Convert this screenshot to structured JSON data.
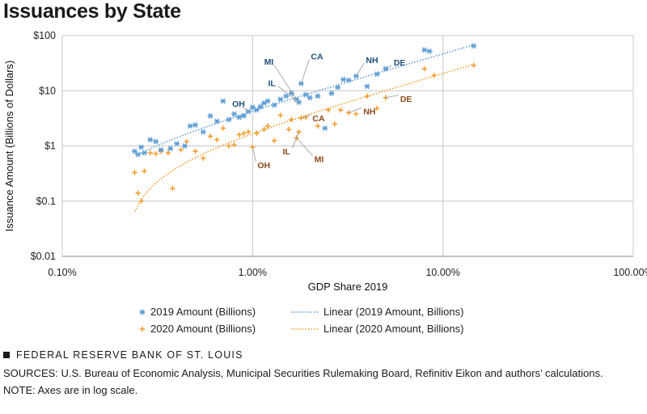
{
  "title": "Issuances by State",
  "chart_data": {
    "type": "scatter",
    "title": "Issuances by State",
    "xlabel": "GDP Share 2019",
    "ylabel": "Issuance Amount (Billions of Dollars)",
    "xscale": "log",
    "yscale": "log",
    "xlim": [
      0.1,
      100
    ],
    "ylim": [
      0.01,
      100
    ],
    "x_ticks": [
      0.1,
      1,
      10,
      100
    ],
    "x_tick_labels": [
      "0.10%",
      "1.00%",
      "10.00%",
      "100.00%"
    ],
    "y_ticks": [
      0.01,
      0.1,
      1,
      10,
      100
    ],
    "y_tick_labels": [
      "$0.01",
      "$0.1",
      "$1",
      "$10",
      "$100"
    ],
    "grid": true,
    "series": [
      {
        "name": "2019 Amount (Billions)",
        "color": "#5b9bd5",
        "marker": "asterisk",
        "points": [
          [
            0.24,
            0.8
          ],
          [
            0.25,
            0.7
          ],
          [
            0.26,
            0.95
          ],
          [
            0.27,
            0.75
          ],
          [
            0.29,
            1.3
          ],
          [
            0.31,
            1.2
          ],
          [
            0.33,
            0.85
          ],
          [
            0.37,
            0.9
          ],
          [
            0.4,
            1.1
          ],
          [
            0.44,
            1.0
          ],
          [
            0.47,
            2.3
          ],
          [
            0.5,
            2.4
          ],
          [
            0.55,
            1.8
          ],
          [
            0.6,
            3.5
          ],
          [
            0.65,
            2.8
          ],
          [
            0.7,
            6.5
          ],
          [
            0.75,
            3.0
          ],
          [
            0.8,
            3.8
          ],
          [
            0.85,
            3.3
          ],
          [
            0.9,
            3.5
          ],
          [
            0.95,
            4.2
          ],
          [
            1.0,
            5.0
          ],
          [
            1.05,
            4.5
          ],
          [
            1.1,
            5.2
          ],
          [
            1.15,
            6.0
          ],
          [
            1.2,
            6.5
          ],
          [
            1.3,
            5.5
          ],
          [
            1.4,
            7.0
          ],
          [
            1.5,
            8.0
          ],
          [
            1.6,
            9.0
          ],
          [
            1.7,
            7.0
          ],
          [
            1.75,
            6.2
          ],
          [
            1.8,
            13.5
          ],
          [
            1.9,
            8.5
          ],
          [
            2.0,
            7.5
          ],
          [
            2.2,
            8.0
          ],
          [
            2.4,
            2.1
          ],
          [
            2.6,
            9.0
          ],
          [
            2.8,
            11.5
          ],
          [
            3.0,
            16.0
          ],
          [
            3.2,
            15.5
          ],
          [
            3.5,
            18.5
          ],
          [
            4.0,
            12.0
          ],
          [
            4.5,
            20.0
          ],
          [
            5.0,
            25.0
          ],
          [
            8.0,
            55.0
          ],
          [
            8.5,
            52.0
          ],
          [
            14.5,
            65.0
          ]
        ],
        "labels": [
          {
            "text": "OH",
            "x": 0.95,
            "y": 4.2
          },
          {
            "text": "IL",
            "x": 1.75,
            "y": 6.2
          },
          {
            "text": "MI",
            "x": 1.7,
            "y": 7.0
          },
          {
            "text": "CA",
            "x": 1.8,
            "y": 13.5
          },
          {
            "text": "NH",
            "x": 3.5,
            "y": 18.5
          },
          {
            "text": "DE",
            "x": 5.0,
            "y": 25.0
          }
        ]
      },
      {
        "name": "2020 Amount (Billions)",
        "color": "#f39c2b",
        "marker": "plus",
        "points": [
          [
            0.24,
            0.33
          ],
          [
            0.25,
            0.14
          ],
          [
            0.26,
            0.1
          ],
          [
            0.27,
            0.35
          ],
          [
            0.29,
            0.75
          ],
          [
            0.31,
            0.72
          ],
          [
            0.33,
            0.8
          ],
          [
            0.36,
            0.75
          ],
          [
            0.38,
            0.17
          ],
          [
            0.42,
            0.85
          ],
          [
            0.45,
            1.2
          ],
          [
            0.5,
            0.8
          ],
          [
            0.55,
            0.6
          ],
          [
            0.6,
            1.5
          ],
          [
            0.65,
            1.3
          ],
          [
            0.7,
            2.1
          ],
          [
            0.75,
            1.0
          ],
          [
            0.8,
            1.05
          ],
          [
            0.85,
            1.6
          ],
          [
            0.9,
            1.7
          ],
          [
            0.95,
            1.8
          ],
          [
            1.0,
            0.95
          ],
          [
            1.05,
            1.7
          ],
          [
            1.15,
            2.0
          ],
          [
            1.2,
            2.3
          ],
          [
            1.3,
            1.25
          ],
          [
            1.4,
            3.6
          ],
          [
            1.55,
            2.0
          ],
          [
            1.6,
            3.0
          ],
          [
            1.7,
            1.4
          ],
          [
            1.75,
            1.8
          ],
          [
            1.8,
            3.2
          ],
          [
            1.9,
            3.3
          ],
          [
            2.2,
            2.3
          ],
          [
            2.5,
            4.5
          ],
          [
            2.7,
            2.5
          ],
          [
            2.9,
            4.5
          ],
          [
            3.2,
            4.0
          ],
          [
            3.5,
            3.8
          ],
          [
            4.0,
            8.0
          ],
          [
            4.5,
            4.8
          ],
          [
            5.0,
            7.5
          ],
          [
            8.0,
            25.0
          ],
          [
            9.0,
            19.0
          ],
          [
            14.5,
            29.0
          ]
        ],
        "labels": [
          {
            "text": "OH",
            "x": 1.0,
            "y": 0.95
          },
          {
            "text": "IL",
            "x": 1.75,
            "y": 1.8
          },
          {
            "text": "MI",
            "x": 1.7,
            "y": 1.4
          },
          {
            "text": "CA",
            "x": 1.8,
            "y": 3.2
          },
          {
            "text": "NH",
            "x": 3.2,
            "y": 4.0
          },
          {
            "text": "DE",
            "x": 5.0,
            "y": 7.5
          }
        ]
      }
    ],
    "trendlines": [
      {
        "name": "Linear (2019 Amount, Billions)",
        "color": "#5b9bd5",
        "x_range": [
          0.25,
          14.5
        ],
        "y_at_start": 0.7,
        "y_at_end": 68
      },
      {
        "name": "Linear (2020 Amount, Billions)",
        "color": "#f39c2b",
        "x_range": [
          0.24,
          14.5
        ],
        "y_at_start": 0.065,
        "y_at_end": 30
      }
    ],
    "legend": {
      "position": "bottom",
      "items": [
        "2019 Amount (Billions)",
        "2020 Amount (Billions)",
        "Linear (2019 Amount, Billions)",
        "Linear (2020 Amount, Billions)"
      ]
    }
  },
  "footer": {
    "brand": "FEDERAL RESERVE BANK OF ST. LOUIS",
    "sources": "SOURCES: U.S. Bureau of Economic Analysis, Municipal Securities Rulemaking Board, Refinitiv Eikon and authors’ calculations.",
    "note": "NOTE: Axes are in log scale."
  }
}
